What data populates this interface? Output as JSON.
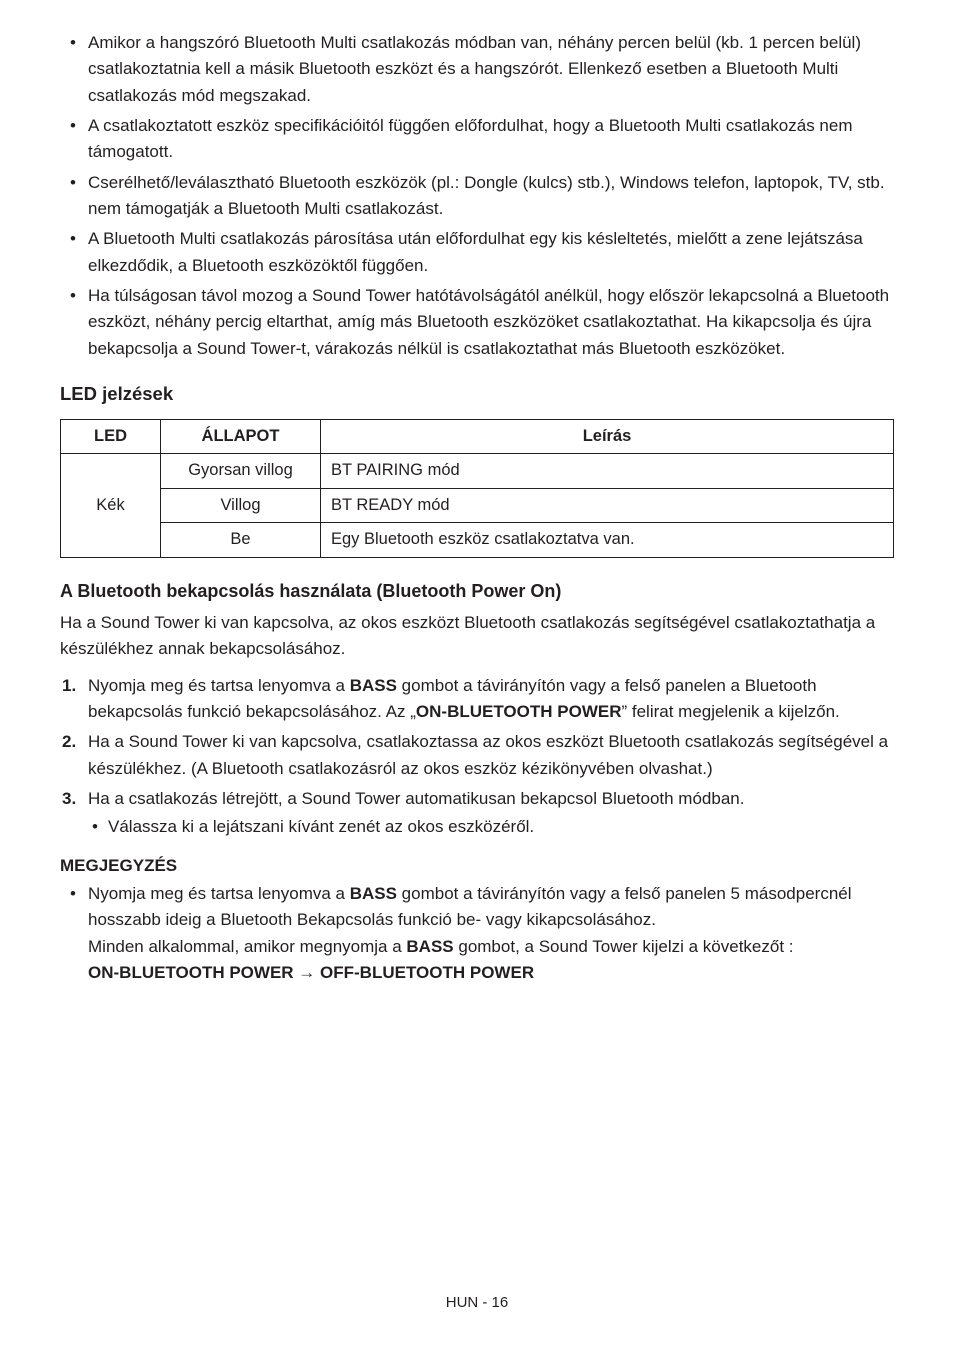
{
  "top_bullets": [
    "Amikor a hangszóró Bluetooth Multi csatlakozás módban van, néhány percen belül (kb. 1 percen belül) csatlakoztatnia kell a másik Bluetooth eszközt és a hangszórót. Ellenkező esetben a Bluetooth Multi csatlakozás mód megszakad.",
    "A csatlakoztatott eszköz specifikációitól függően előfordulhat, hogy a Bluetooth Multi csatlakozás nem támogatott.",
    "Cserélhető/leválasztható Bluetooth eszközök (pl.: Dongle (kulcs) stb.), Windows telefon, laptopok, TV, stb. nem támogatják a Bluetooth Multi csatlakozást.",
    "A Bluetooth Multi csatlakozás párosítása után előfordulhat egy kis késleltetés, mielőtt a zene lejátszása elkezdődik, a Bluetooth eszközöktől függően.",
    "Ha túlságosan távol mozog a Sound Tower hatótávolságától anélkül, hogy először lekapcsolná a Bluetooth eszközt, néhány percig eltarthat, amíg más Bluetooth eszközöket csatlakoztathat. Ha kikapcsolja és újra bekapcsolja a Sound Tower-t, várakozás nélkül is csatlakoztathat más Bluetooth eszközöket."
  ],
  "led_section_title": "LED jelzések",
  "led_table": {
    "headers": {
      "led": "LED",
      "status": "ÁLLAPOT",
      "desc": "Leírás"
    },
    "led_value": "Kék",
    "rows": [
      {
        "status": "Gyorsan villog",
        "desc": "BT PAIRING mód"
      },
      {
        "status": "Villog",
        "desc": "BT READY mód"
      },
      {
        "status": "Be",
        "desc": "Egy Bluetooth eszköz csatlakoztatva van."
      }
    ]
  },
  "bt_power": {
    "title": "A Bluetooth bekapcsolás használata (Bluetooth Power On)",
    "intro": "Ha a Sound Tower ki van kapcsolva, az okos eszközt Bluetooth csatlakozás segítségével csatlakoztathatja a készülékhez annak bekapcsolásához.",
    "steps": {
      "s1_a": "Nyomja meg és tartsa lenyomva a ",
      "s1_bass": "BASS",
      "s1_b": " gombot a távirányítón vagy a felső panelen a Bluetooth bekapcsolás funkció bekapcsolásához. Az „",
      "s1_onbt": "ON-BLUETOOTH POWER",
      "s1_c": "” felirat megjelenik a kijelzőn.",
      "s2": "Ha a Sound Tower ki van kapcsolva, csatlakoztassa az okos eszközt Bluetooth csatlakozás segítségével a készülékhez. (A Bluetooth csatlakozásról az okos eszköz kézikönyvében olvashat.)",
      "s3": "Ha a csatlakozás létrejött, a Sound Tower automatikusan bekapcsol Bluetooth módban.",
      "s3_sub": "Válassza ki a lejátszani kívánt zenét az okos eszközéről."
    }
  },
  "note": {
    "head": "MEGJEGYZÉS",
    "line1_a": "Nyomja meg és tartsa lenyomva a ",
    "line1_bass": "BASS",
    "line1_b": " gombot a távirányítón vagy a felső panelen 5 másodpercnél hosszabb ideig a Bluetooth Bekapcsolás funkció be- vagy kikapcsolásához.",
    "line2_a": "Minden alkalommal, amikor megnyomja a ",
    "line2_bass": "BASS",
    "line2_b": " gombot, a Sound Tower kijelzi a következőt :",
    "toggle_on": "ON-BLUETOOTH POWER",
    "toggle_arrow": " → ",
    "toggle_off": "OFF-BLUETOOTH POWER"
  },
  "footer": "HUN - 16"
}
